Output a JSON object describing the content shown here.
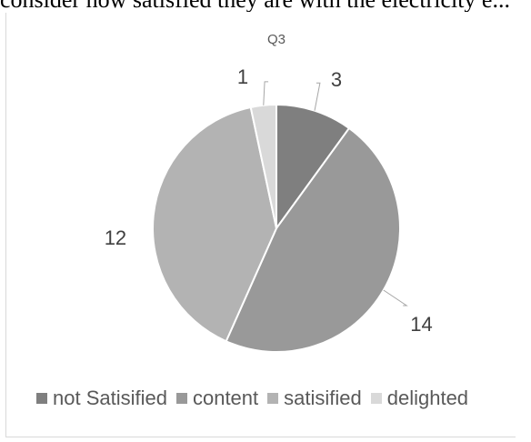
{
  "page": {
    "top_caption": "consider how satisfied they are with the electricity e..."
  },
  "chart_data": {
    "type": "pie",
    "title": "Q3",
    "categories": [
      "not Satisified",
      "content",
      "satisified",
      "delighted"
    ],
    "values": [
      3,
      14,
      12,
      1
    ],
    "colors": [
      "#7f7f7f",
      "#999999",
      "#b3b3b3",
      "#d9d9d9"
    ],
    "data_labels": [
      "3",
      "14",
      "12",
      "1"
    ],
    "legend": {
      "position": "bottom"
    }
  }
}
